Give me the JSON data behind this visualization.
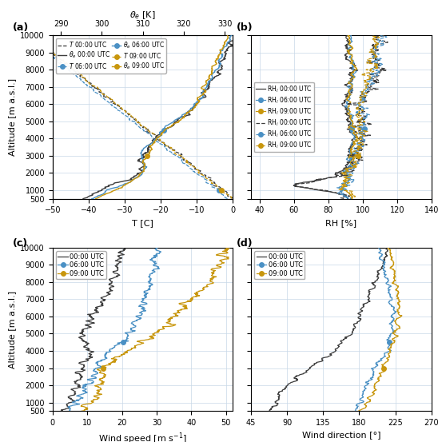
{
  "colors": {
    "black": "#3d3d3d",
    "blue": "#4a90c4",
    "orange": "#c8960c"
  },
  "alt_min": 500,
  "alt_max": 10000,
  "panel_labels": [
    "(a)",
    "(b)",
    "(c)",
    "(d)"
  ],
  "panel_a": {
    "T_xlim": [
      -50,
      0
    ],
    "T_xticks": [
      -50,
      -40,
      -30,
      -20,
      -10,
      0
    ],
    "theta_xlim": [
      288,
      332
    ],
    "theta_xticks": [
      290,
      300,
      310,
      320,
      330
    ],
    "xlabel_T": "T [C]",
    "xlabel_theta": "$\\theta_e$ [K]",
    "ylabel": "Altitude [m a.s.l.]"
  },
  "panel_b": {
    "xlim": [
      35,
      140
    ],
    "xticks": [
      40,
      60,
      80,
      100,
      120,
      140
    ],
    "xlabel": "RH [%]"
  },
  "panel_c": {
    "xlim": [
      0,
      52
    ],
    "xticks": [
      0,
      10,
      20,
      30,
      40,
      50
    ],
    "xlabel": "Wind speed [m s$^{-1}$]",
    "ylabel": "Altitude [m a.s.l.]"
  },
  "panel_d": {
    "xlim": [
      45,
      270
    ],
    "xticks": [
      45,
      90,
      135,
      180,
      225,
      270
    ],
    "xlabel": "Wind direction [°]"
  },
  "alt_ticks": [
    500,
    1000,
    2000,
    3000,
    4000,
    5000,
    6000,
    7000,
    8000,
    9000,
    10000
  ],
  "bg_color": "#ffffff",
  "grid_color": "#c8d8e8"
}
